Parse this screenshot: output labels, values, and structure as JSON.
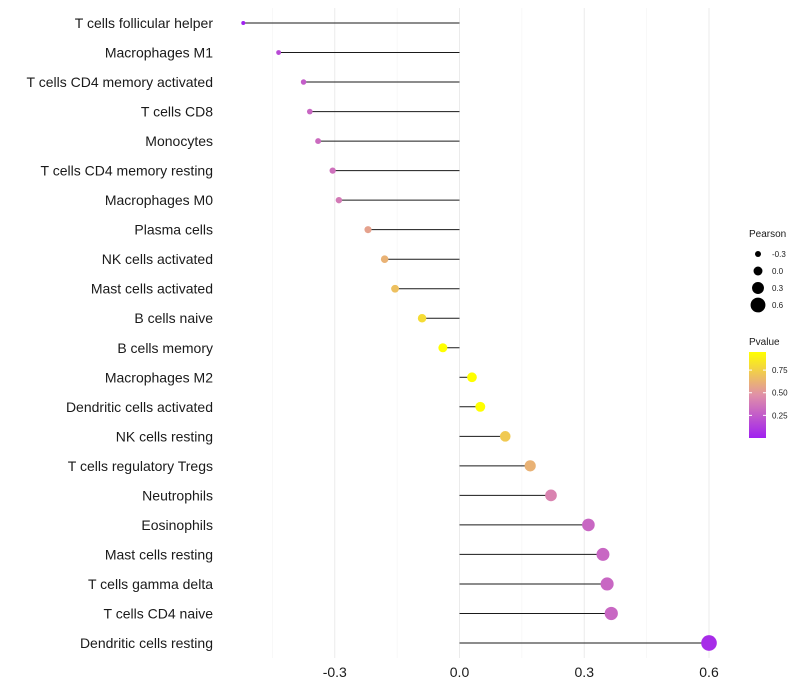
{
  "chart_data": {
    "type": "lollipop",
    "title": "",
    "xlabel": "",
    "ylabel": "",
    "xlim": [
      -0.52,
      0.62
    ],
    "x_ticks": [
      {
        "value": -0.3,
        "label": "-0.3"
      },
      {
        "value": 0.0,
        "label": "0.0"
      },
      {
        "value": 0.3,
        "label": "0.3"
      },
      {
        "value": 0.6,
        "label": "0.6"
      }
    ],
    "x_minor_grid": [
      -0.45,
      -0.15,
      0.15,
      0.45
    ],
    "grid": true,
    "categories": [
      "T cells follicular helper",
      "Macrophages M1",
      "T cells CD4 memory activated",
      "T cells CD8",
      "Monocytes",
      "T cells CD4 memory resting",
      "Macrophages M0",
      "Plasma cells",
      "NK cells activated",
      "Mast cells activated",
      "B cells naive",
      "B cells memory",
      "Macrophages M2",
      "Dendritic cells activated",
      "NK cells resting",
      "T cells regulatory  Tregs",
      "Neutrophils",
      "Eosinophils",
      "Mast cells resting",
      "T cells gamma delta",
      "T cells CD4 naive",
      "Dendritic cells resting"
    ],
    "pearson": [
      -0.52,
      -0.435,
      -0.375,
      -0.36,
      -0.34,
      -0.305,
      -0.29,
      -0.22,
      -0.18,
      -0.155,
      -0.09,
      -0.04,
      0.03,
      0.05,
      0.11,
      0.17,
      0.22,
      0.31,
      0.345,
      0.355,
      0.365,
      0.6
    ],
    "pvalue": [
      0.0,
      0.18,
      0.26,
      0.3,
      0.32,
      0.34,
      0.38,
      0.55,
      0.62,
      0.68,
      0.8,
      0.95,
      0.98,
      0.96,
      0.72,
      0.62,
      0.42,
      0.3,
      0.3,
      0.3,
      0.3,
      0.05
    ],
    "legend_size": {
      "title": "Pearson",
      "entries": [
        {
          "value": -0.3,
          "label": "-0.3"
        },
        {
          "value": 0.0,
          "label": "0.0"
        },
        {
          "value": 0.3,
          "label": "0.3"
        },
        {
          "value": 0.6,
          "label": "0.6"
        }
      ]
    },
    "legend_color": {
      "title": "Pvalue",
      "ticks": [
        {
          "value": 0.75,
          "label": "0.75"
        },
        {
          "value": 0.5,
          "label": "0.50"
        },
        {
          "value": 0.25,
          "label": "0.25"
        }
      ],
      "range": [
        0.0,
        0.95
      ],
      "low_color": "#a020f0",
      "mid_color": "#e090a8",
      "high_color": "#ffff00"
    },
    "legend_placement": "right"
  }
}
